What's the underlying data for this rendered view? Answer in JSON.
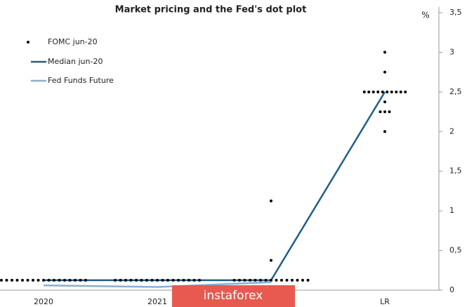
{
  "chart_data": {
    "type": "dot-plot",
    "title": "Market pricing and the Fed's dot plot",
    "y_unit": "%",
    "categories": [
      "2020",
      "2021",
      null,
      "LR"
    ],
    "ylim": [
      0,
      3.5
    ],
    "yticks": [
      0,
      {
        "value": 0.5,
        "label": "0,5"
      },
      1,
      {
        "value": 1.5,
        "label": "1,5"
      },
      2,
      {
        "value": 2.5,
        "label": "2,5"
      },
      3,
      {
        "value": 3.5,
        "label": "3,5"
      }
    ],
    "dots": {
      "name": "FOMC jun-20",
      "color": "#000000",
      "values": [
        [
          0.125,
          0.125,
          0.125,
          0.125,
          0.125,
          0.125,
          0.125,
          0.125,
          0.125,
          0.125,
          0.125,
          0.125,
          0.125,
          0.125,
          0.125,
          0.125,
          0.125
        ],
        [
          0.125,
          0.125,
          0.125,
          0.125,
          0.125,
          0.125,
          0.125,
          0.125,
          0.125,
          0.125,
          0.125,
          0.125,
          0.125,
          0.125,
          0.125,
          0.125,
          0.125
        ],
        [
          0.125,
          0.125,
          0.125,
          0.125,
          0.125,
          0.125,
          0.125,
          0.125,
          0.125,
          0.125,
          0.125,
          0.125,
          0.125,
          0.125,
          0.125,
          0.375,
          1.125
        ],
        [
          3.0,
          2.75,
          2.5,
          2.5,
          2.5,
          2.5,
          2.5,
          2.5,
          2.5,
          2.5,
          2.5,
          2.5,
          2.375,
          2.25,
          2.25,
          2.25,
          2.0
        ]
      ]
    },
    "series": [
      {
        "name": "Median jun-20",
        "color": "#1f5f8b",
        "values": [
          0.125,
          0.125,
          0.125,
          2.5
        ]
      },
      {
        "name": "Fed Funds Future",
        "color": "#8aaed0",
        "values": [
          0.06,
          0.04,
          0.1,
          null
        ]
      }
    ],
    "watermark": "instaforex"
  }
}
